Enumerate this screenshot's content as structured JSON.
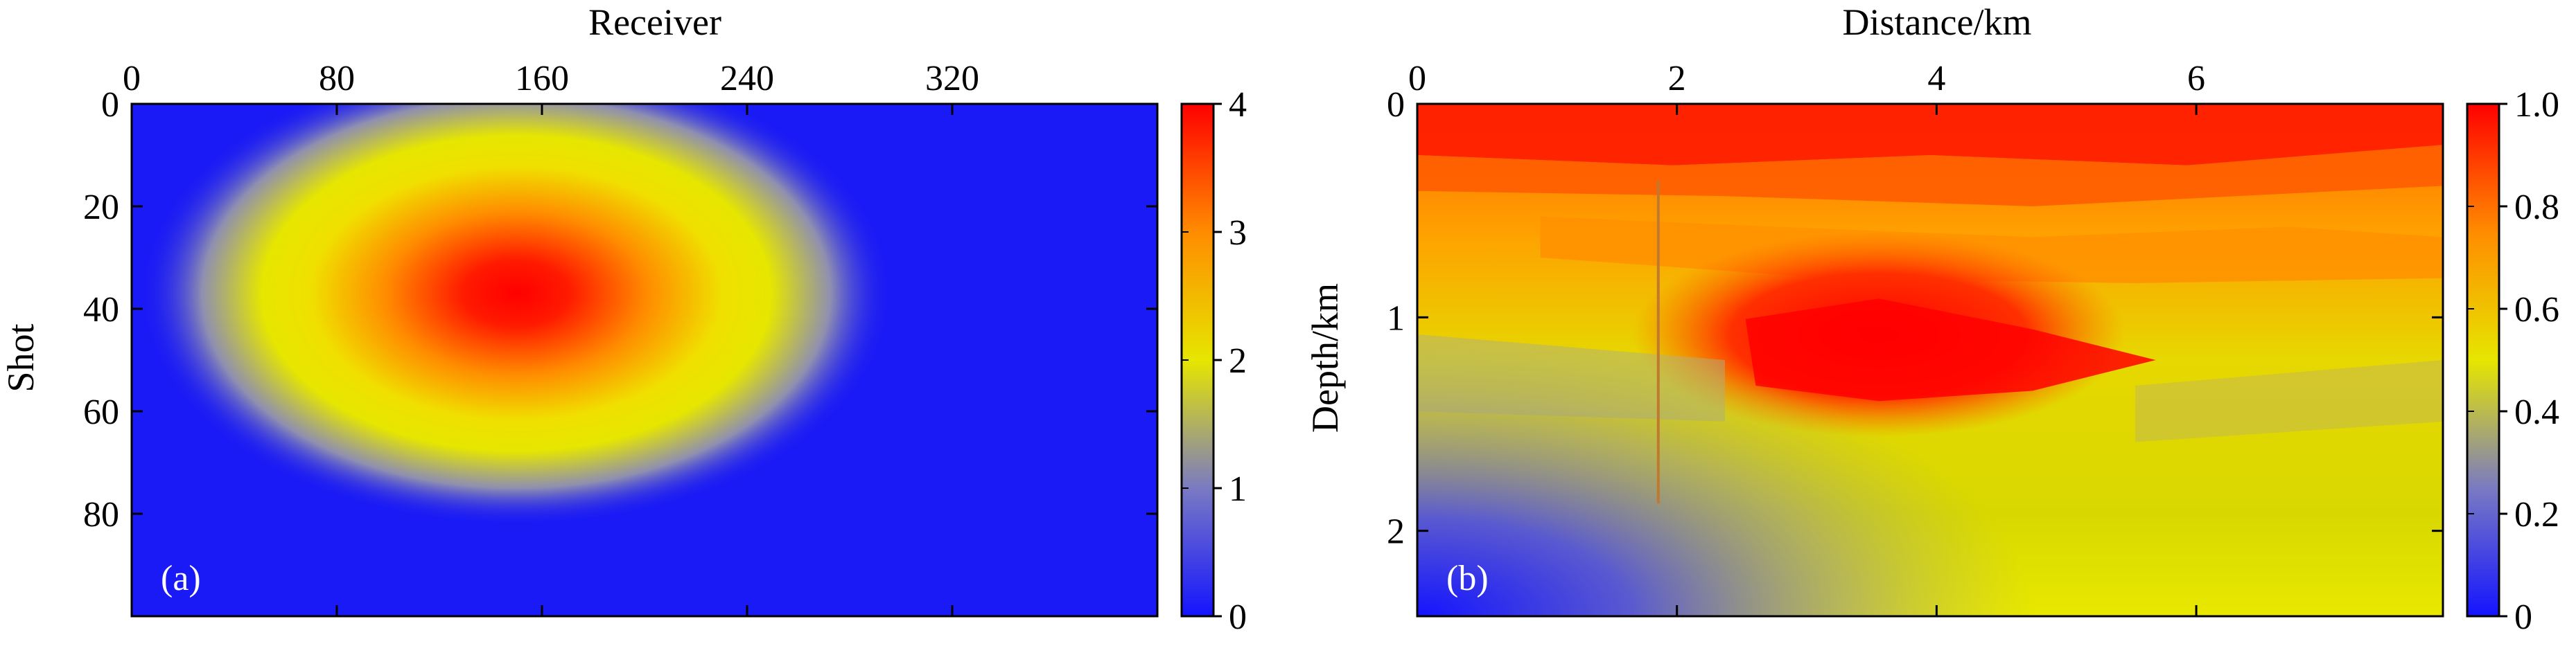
{
  "chart_data": [
    {
      "id": "a",
      "type": "heatmap",
      "panel_label": "(a)",
      "xlabel": "Receiver",
      "ylabel": "Shot",
      "x_range": [
        0,
        400
      ],
      "y_range": [
        0,
        100
      ],
      "y_inverted": true,
      "x_ticks": [
        0,
        80,
        160,
        240,
        320
      ],
      "y_ticks": [
        0,
        20,
        40,
        60,
        80
      ],
      "x_axis_position": "top",
      "colorbar": {
        "min": 0,
        "max": 4,
        "ticks": [
          "0",
          "1",
          "2",
          "3",
          "4"
        ],
        "position": "right"
      },
      "colormap": [
        "#1414ff",
        "#7a7ac2",
        "#e6e600",
        "#ff8c00",
        "#ff0000"
      ],
      "peak": {
        "receiver": 150,
        "shot": 37,
        "value": 4
      }
    },
    {
      "id": "b",
      "type": "heatmap",
      "panel_label": "(b)",
      "xlabel": "Distance/km",
      "ylabel": "Depth/km",
      "x_range": [
        0,
        7.9
      ],
      "y_range": [
        0,
        2.4
      ],
      "y_inverted": true,
      "x_ticks": [
        "0",
        "2",
        "4",
        "6"
      ],
      "y_ticks": [
        "0",
        "1",
        "2"
      ],
      "x_axis_position": "top",
      "colorbar": {
        "min": 0,
        "max": 1,
        "ticks": [
          "0",
          "0.2",
          "0.4",
          "0.6",
          "0.8",
          "1.0"
        ],
        "position": "right"
      },
      "colormap": [
        "#1414ff",
        "#7a7ac2",
        "#e6e600",
        "#ff8c00",
        "#ff0000"
      ]
    }
  ]
}
